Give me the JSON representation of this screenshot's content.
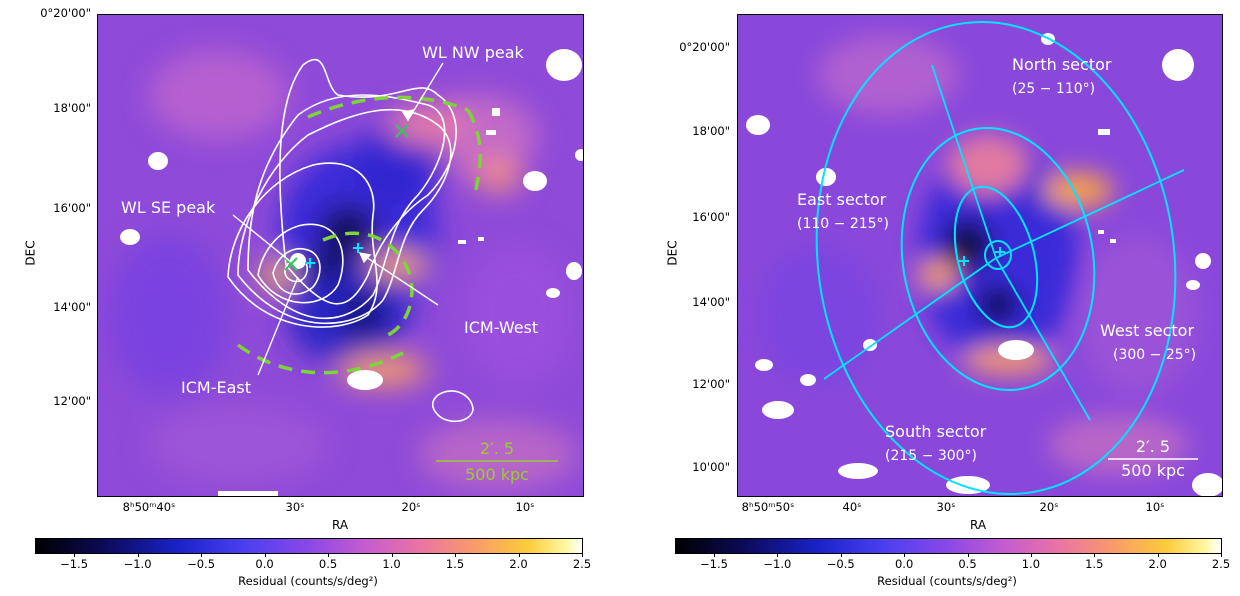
{
  "left_panel": {
    "y_ticks": [
      "0°20'00\"",
      "18'00\"",
      "16'00\"",
      "14'00\"",
      "12'00\""
    ],
    "x_ticks": [
      "8ʰ50ᵐ40ˢ",
      "30ˢ",
      "20ˢ",
      "10ˢ"
    ],
    "x_axis_label": "RA",
    "y_axis_label": "DEC",
    "annotations": {
      "wl_nw_peak": "WL NW peak",
      "wl_se_peak": "WL SE peak",
      "icm_west": "ICM-West",
      "icm_east": "ICM-East"
    },
    "scale_bar": {
      "angular": "2′. 5",
      "physical": "500 kpc",
      "color": "#9acd32"
    },
    "colors": {
      "contours": "#ffffff",
      "shock_arcs": "#7fd33a",
      "markers": "#00e5ff"
    }
  },
  "right_panel": {
    "y_ticks": [
      "0°20'00\"",
      "18'00\"",
      "16'00\"",
      "14'00\"",
      "12'00\"",
      "10'00\""
    ],
    "x_ticks": [
      "8ʰ50ᵐ50ˢ",
      "40ˢ",
      "30ˢ",
      "20ˢ",
      "10ˢ"
    ],
    "x_axis_label": "RA",
    "y_axis_label": "DEC",
    "sectors": {
      "north": {
        "name": "North sector",
        "range": "(25 − 110°)"
      },
      "east": {
        "name": "East sector",
        "range": "(110 − 215°)"
      },
      "west": {
        "name": "West sector",
        "range": "(300 − 25°)"
      },
      "south": {
        "name": "South sector",
        "range": "(215 − 300°)"
      }
    },
    "scale_bar": {
      "angular": "2′. 5",
      "physical": "500 kpc",
      "color": "#ffffff"
    },
    "colors": {
      "ellipses": "#00e5ff"
    }
  },
  "colorbar": {
    "ticks": [
      "−1.5",
      "−1.0",
      "−0.5",
      "0.0",
      "0.5",
      "1.0",
      "1.5",
      "2.0",
      "2.5"
    ],
    "label": "Residual (counts/s/deg²)"
  }
}
